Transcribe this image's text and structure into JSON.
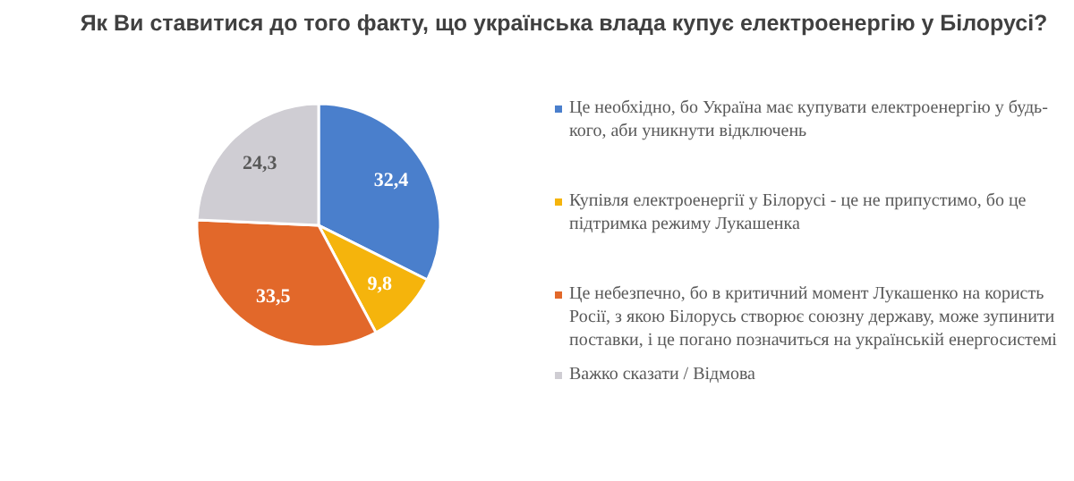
{
  "chart_data": {
    "type": "pie",
    "title": "Як Ви ставитися до того факту, що українська влада купує електроенергію у Білорусі?",
    "categories": [
      "Це необхідно, бо Україна має купувати електроенергію у будь-кого, аби уникнути відключень",
      "Купівля електроенергії у Білорусі - це не припустимо, бо це підтримка режиму Лукашенка",
      "Це небезпечно, бо в критичний момент Лукашенко на користь Росії, з якою Білорусь створює союзну державу, може зупинити поставки, і це погано позначиться на українській енергосистемі",
      "Важко сказати / Відмова"
    ],
    "values": [
      32.4,
      9.8,
      33.5,
      24.3
    ],
    "colors": [
      "#4a7fcc",
      "#f5b40c",
      "#e2682a",
      "#cfcdd3"
    ],
    "value_labels": [
      "32,4",
      "9,8",
      "33,5",
      "24,3"
    ],
    "legend": "right"
  }
}
